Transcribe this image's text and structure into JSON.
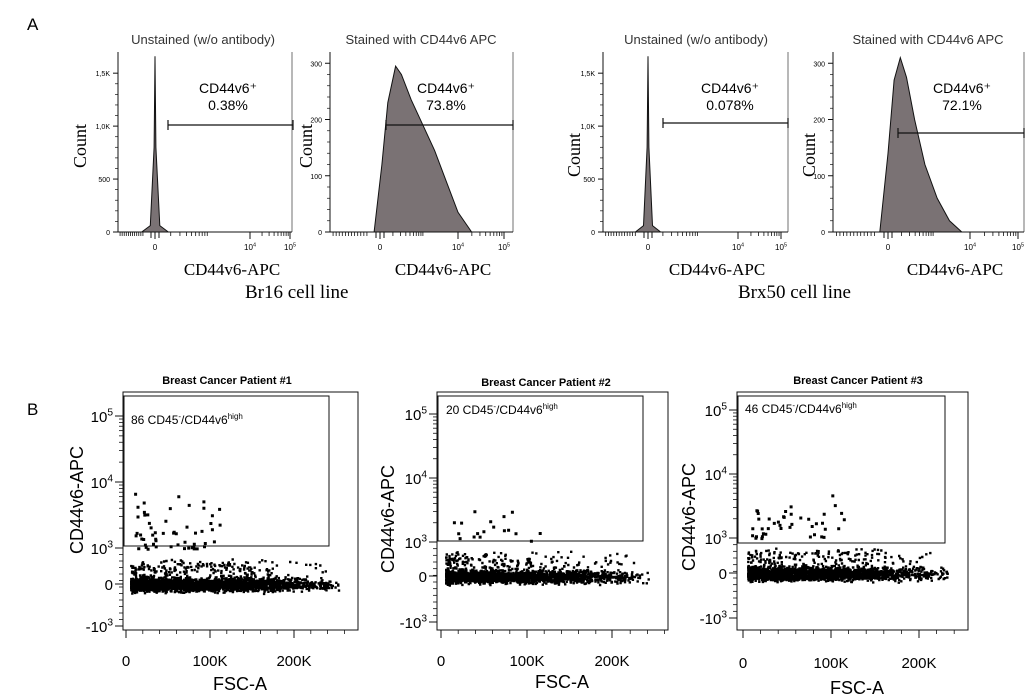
{
  "figure": {
    "panel_a_letter": "A",
    "panel_b_letter": "B",
    "cell_line_labels": [
      "Br16 cell line",
      "Brx50 cell line"
    ]
  },
  "chart_data": [
    {
      "type": "area",
      "panel": "A",
      "title": "Unstained (w/o antibody)",
      "xlabel": "CD44v6-APC",
      "ylabel": "Count",
      "x_scale": "biexponential",
      "x_tick_labels": [
        "0",
        "10^4",
        "10^5"
      ],
      "y_tick_labels": [
        "0",
        "500",
        "1,0K",
        "1,5K"
      ],
      "ylim": [
        0,
        1700
      ],
      "gate": {
        "label": "CD44v6⁺",
        "percent": "0.38%"
      },
      "series": [
        {
          "x": [
            -0.28,
            -0.1,
            -0.02,
            0.0,
            0.02,
            0.1,
            0.28
          ],
          "y": [
            0,
            60,
            800,
            1660,
            800,
            60,
            0
          ]
        }
      ]
    },
    {
      "type": "area",
      "panel": "A",
      "title": "Stained with CD44v6 APC",
      "xlabel": "CD44v6-APC",
      "ylabel": "Count",
      "x_scale": "biexponential",
      "x_tick_labels": [
        "0",
        "10^4",
        "10^5"
      ],
      "y_tick_labels": [
        "0",
        "100",
        "200",
        "300"
      ],
      "ylim": [
        0,
        320
      ],
      "gate": {
        "label": "CD44v6⁺",
        "percent": "73.8%"
      },
      "series": [
        {
          "x": [
            -0.15,
            0.05,
            0.2,
            0.4,
            0.55,
            0.8,
            1.1,
            1.4,
            1.7,
            2.0,
            2.35
          ],
          "y": [
            0,
            120,
            230,
            295,
            280,
            235,
            190,
            145,
            90,
            35,
            0
          ]
        }
      ]
    },
    {
      "type": "area",
      "panel": "A",
      "title": "Unstained (w/o antibody)",
      "xlabel": "CD44v6-APC",
      "ylabel": "Count",
      "x_scale": "biexponential",
      "x_tick_labels": [
        "0",
        "10^4",
        "10^5"
      ],
      "y_tick_labels": [
        "0",
        "500",
        "1,0K",
        "1,5K"
      ],
      "ylim": [
        0,
        1700
      ],
      "gate": {
        "label": "CD44v6⁺",
        "percent": "0.078%"
      },
      "series": [
        {
          "x": [
            -0.28,
            -0.1,
            -0.02,
            0.0,
            0.02,
            0.1,
            0.28
          ],
          "y": [
            0,
            60,
            800,
            1660,
            800,
            60,
            0
          ]
        }
      ]
    },
    {
      "type": "area",
      "panel": "A",
      "title": "Stained with CD44v6 APC",
      "xlabel": "CD44v6-APC",
      "ylabel": "Count",
      "x_scale": "biexponential",
      "x_tick_labels": [
        "0",
        "10^4",
        "10^5"
      ],
      "y_tick_labels": [
        "0",
        "100",
        "200",
        "300"
      ],
      "ylim": [
        0,
        320
      ],
      "gate": {
        "label": "CD44v6⁺",
        "percent": "72.1%"
      },
      "series": [
        {
          "x": [
            -0.2,
            0.0,
            0.15,
            0.3,
            0.45,
            0.65,
            0.9,
            1.2,
            1.5,
            1.8
          ],
          "y": [
            0,
            140,
            270,
            310,
            275,
            200,
            120,
            60,
            20,
            0
          ]
        }
      ]
    },
    {
      "type": "scatter",
      "panel": "B",
      "title": "Breast Cancer Patient #1",
      "xlabel": "FSC-A",
      "ylabel": "CD44v6-APC",
      "x_tick_labels": [
        "0",
        "100K",
        "200K"
      ],
      "xlim": [
        0,
        262000
      ],
      "y_tick_labels": [
        "10^5",
        "10^4",
        "10^3",
        "0",
        "-10^3"
      ],
      "gate": {
        "count": "86",
        "label_sub": "CD45",
        "label_sup1": "-",
        "label_mid": "/CD44v6",
        "label_sup2": "high"
      }
    },
    {
      "type": "scatter",
      "panel": "B",
      "title": "Breast Cancer Patient #2",
      "xlabel": "FSC-A",
      "ylabel": "CD44v6-APC",
      "x_tick_labels": [
        "0",
        "100K",
        "200K"
      ],
      "xlim": [
        0,
        262000
      ],
      "y_tick_labels": [
        "10^5",
        "10^4",
        "10^3",
        "0",
        "-10^3"
      ],
      "gate": {
        "count": "20",
        "label_sub": "CD45",
        "label_sup1": "-",
        "label_mid": "/CD44v6",
        "label_sup2": "high"
      }
    },
    {
      "type": "scatter",
      "panel": "B",
      "title": "Breast Cancer Patient #3",
      "xlabel": "FSC-A",
      "ylabel": "CD44v6-APC",
      "x_tick_labels": [
        "0",
        "100K",
        "200K"
      ],
      "xlim": [
        0,
        262000
      ],
      "y_tick_labels": [
        "10^5",
        "10^4",
        "10^3",
        "0",
        "-10^3"
      ],
      "gate": {
        "count": "46",
        "label_sub": "CD45",
        "label_sup1": "-",
        "label_mid": "/CD44v6",
        "label_sup2": "high"
      }
    }
  ]
}
